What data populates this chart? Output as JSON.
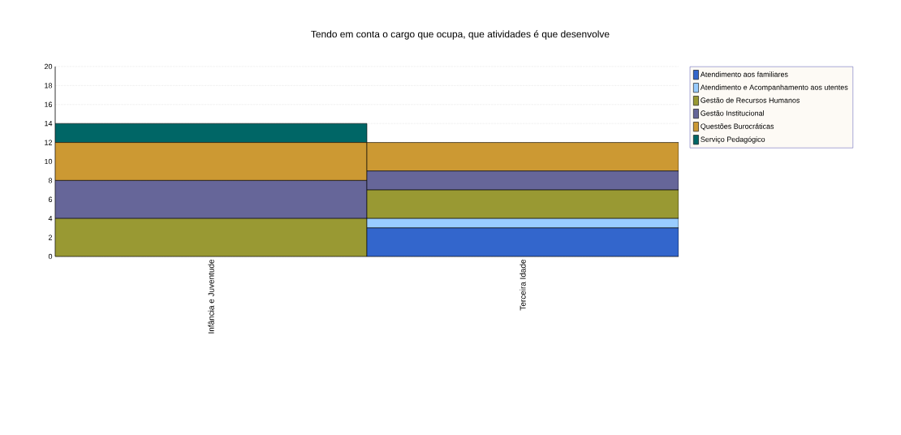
{
  "chart_data": {
    "type": "bar",
    "stacked": true,
    "title": "Tendo em conta o cargo que ocupa, que atividades é que desenvolve",
    "categories": [
      "Infância e Juventude",
      "Terceira Idade"
    ],
    "series": [
      {
        "name": "Atendimento aos familiares",
        "color": "#3366cc",
        "values": [
          0,
          3
        ]
      },
      {
        "name": "Atendimento e Acompanhamento aos utentes",
        "color": "#99ccff",
        "values": [
          0,
          1
        ]
      },
      {
        "name": "Gestão de Recursos Humanos",
        "color": "#999933",
        "values": [
          4,
          3
        ]
      },
      {
        "name": "Gestão Institucional",
        "color": "#666699",
        "values": [
          4,
          2
        ]
      },
      {
        "name": "Questões Burocráticas",
        "color": "#cc9933",
        "values": [
          4,
          3
        ]
      },
      {
        "name": "Serviço Pedagógico",
        "color": "#006666",
        "values": [
          2,
          0
        ]
      }
    ],
    "ylim": [
      0,
      20
    ],
    "yticks": [
      0,
      2,
      4,
      6,
      8,
      10,
      12,
      14,
      16,
      18,
      20
    ],
    "grid": "y",
    "legend": "right"
  }
}
